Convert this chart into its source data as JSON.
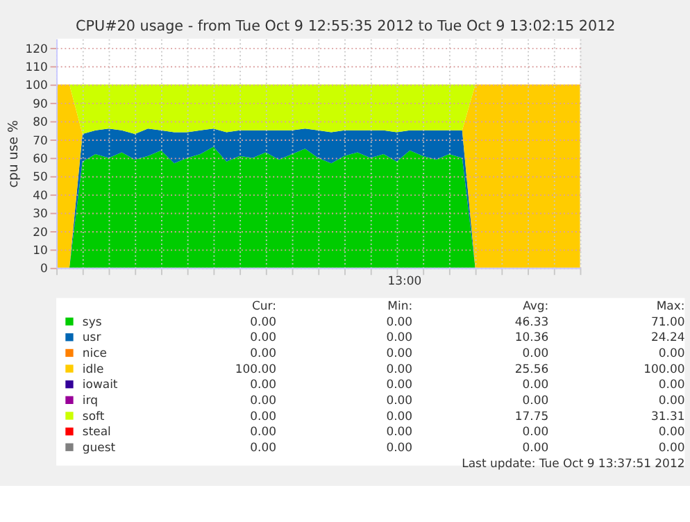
{
  "chart_data": {
    "type": "area",
    "stacked": true,
    "title": "CPU#20 usage - from Tue Oct  9 12:55:35 2012 to Tue Oct  9 13:02:15 2012",
    "ylabel": "cpu use %",
    "categories": [
      null,
      null,
      null,
      null,
      null,
      null,
      null,
      null,
      null,
      null,
      null,
      null,
      null,
      null,
      null,
      null,
      null,
      null,
      null,
      null,
      null,
      null,
      null,
      null,
      null,
      null,
      null,
      null,
      null,
      null,
      null,
      null,
      null,
      null,
      null,
      null,
      null,
      null,
      null,
      null,
      null
    ],
    "series": [
      {
        "name": "sys",
        "color": "#00cc00",
        "values": [
          0,
          0,
          58,
          62,
          60,
          63,
          59,
          61,
          64,
          57,
          60,
          62,
          66,
          58,
          61,
          60,
          63,
          59,
          62,
          65,
          60,
          57,
          61,
          63,
          60,
          62,
          58,
          64,
          61,
          59,
          62,
          60,
          0,
          0,
          0,
          0,
          0,
          0,
          0,
          0,
          0
        ]
      },
      {
        "name": "usr",
        "color": "#0066b3",
        "values": [
          0,
          0,
          15,
          13,
          16,
          12,
          14,
          15,
          11,
          17,
          14,
          13,
          10,
          16,
          14,
          15,
          12,
          16,
          13,
          11,
          15,
          17,
          14,
          12,
          15,
          13,
          16,
          11,
          14,
          16,
          13,
          15,
          0,
          0,
          0,
          0,
          0,
          0,
          0,
          0,
          0
        ]
      },
      {
        "name": "nice",
        "color": "#ff8000",
        "values": [
          null,
          null,
          null,
          null,
          null,
          null,
          null,
          null,
          null,
          null,
          null,
          null,
          null,
          null,
          null,
          null,
          null,
          null,
          null,
          null,
          null,
          null,
          null,
          null,
          null,
          null,
          null,
          null,
          null,
          null,
          null,
          null,
          null,
          null,
          null,
          null,
          null,
          null,
          null,
          null,
          null
        ]
      },
      {
        "name": "idle",
        "color": "#ffcc00",
        "values": [
          100,
          100,
          0,
          0,
          0,
          0,
          0,
          0,
          0,
          0,
          0,
          0,
          0,
          0,
          0,
          0,
          0,
          0,
          0,
          0,
          0,
          0,
          0,
          0,
          0,
          0,
          0,
          0,
          0,
          0,
          0,
          0,
          100,
          100,
          100,
          100,
          100,
          100,
          100,
          100,
          100
        ]
      },
      {
        "name": "iowait",
        "color": "#330099",
        "values": [
          null,
          null,
          null,
          null,
          null,
          null,
          null,
          null,
          null,
          null,
          null,
          null,
          null,
          null,
          null,
          null,
          null,
          null,
          null,
          null,
          null,
          null,
          null,
          null,
          null,
          null,
          null,
          null,
          null,
          null,
          null,
          null,
          null,
          null,
          null,
          null,
          null,
          null,
          null,
          null,
          null
        ]
      },
      {
        "name": "irq",
        "color": "#990099",
        "values": [
          null,
          null,
          null,
          null,
          null,
          null,
          null,
          null,
          null,
          null,
          null,
          null,
          null,
          null,
          null,
          null,
          null,
          null,
          null,
          null,
          null,
          null,
          null,
          null,
          null,
          null,
          null,
          null,
          null,
          null,
          null,
          null,
          null,
          null,
          null,
          null,
          null,
          null,
          null,
          null,
          null
        ]
      },
      {
        "name": "soft",
        "color": "#ccff00",
        "values": [
          0,
          0,
          27,
          25,
          24,
          25,
          27,
          24,
          25,
          26,
          26,
          25,
          24,
          26,
          25,
          25,
          25,
          25,
          25,
          24,
          25,
          26,
          25,
          25,
          25,
          25,
          26,
          25,
          25,
          25,
          25,
          25,
          0,
          0,
          0,
          0,
          0,
          0,
          0,
          0,
          0
        ]
      },
      {
        "name": "steal",
        "color": "#ff0000",
        "values": [
          null,
          null,
          null,
          null,
          null,
          null,
          null,
          null,
          null,
          null,
          null,
          null,
          null,
          null,
          null,
          null,
          null,
          null,
          null,
          null,
          null,
          null,
          null,
          null,
          null,
          null,
          null,
          null,
          null,
          null,
          null,
          null,
          null,
          null,
          null,
          null,
          null,
          null,
          null,
          null,
          null
        ]
      },
      {
        "name": "guest",
        "color": "#808080",
        "values": [
          null,
          null,
          null,
          null,
          null,
          null,
          null,
          null,
          null,
          null,
          null,
          null,
          null,
          null,
          null,
          null,
          null,
          null,
          null,
          null,
          null,
          null,
          null,
          null,
          null,
          null,
          null,
          null,
          null,
          null,
          null,
          null,
          null,
          null,
          null,
          null,
          null,
          null,
          null,
          null,
          null
        ]
      }
    ],
    "ylim": [
      0,
      125
    ],
    "yticks": [
      0,
      10,
      20,
      30,
      40,
      50,
      60,
      70,
      80,
      90,
      100,
      110,
      120
    ],
    "grid": true,
    "legend": "bottom",
    "annotations": [
      "13:00",
      "Cur:",
      "Min:",
      "Avg:",
      "Max:",
      "0.00",
      "0.00",
      "46.33",
      "71.00",
      "0.00",
      "0.00",
      "10.36",
      "24.24",
      "0.00",
      "0.00",
      "0.00",
      "0.00",
      "100.00",
      "0.00",
      "25.56",
      "100.00",
      "0.00",
      "0.00",
      "0.00",
      "0.00",
      "0.00",
      "0.00",
      "0.00",
      "0.00",
      "0.00",
      "0.00",
      "17.75",
      "31.31",
      "0.00",
      "0.00",
      "0.00",
      "0.00",
      "0.00",
      "0.00",
      "0.00",
      "0.00",
      "Last update:  Tue Oct  9 13:37:51 2012"
    ]
  }
}
